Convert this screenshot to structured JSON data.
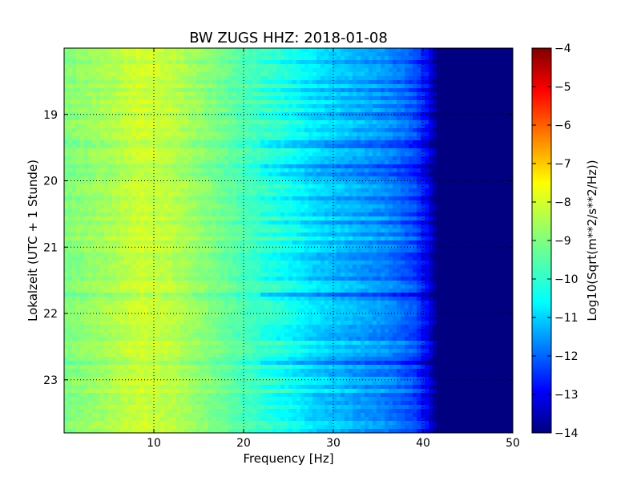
{
  "chart_data": {
    "type": "heatmap",
    "title": "BW ZUGS HHZ: 2018-01-08",
    "xlabel": "Frequency [Hz]",
    "ylabel": "Lokalzeit (UTC + 1 Stunde)",
    "xlim": [
      0,
      50
    ],
    "ylim": [
      18.0,
      23.8
    ],
    "y_inverted": true,
    "x_ticks": [
      10,
      20,
      30,
      40,
      50
    ],
    "y_ticks": [
      19,
      20,
      21,
      22,
      23
    ],
    "grid": true,
    "colormap": "jet",
    "colorbar": {
      "label": "Log10(Sqrt(m**2/s**2/Hz))",
      "range": [
        -14,
        -4
      ],
      "ticks": [
        -4,
        -5,
        -6,
        -7,
        -8,
        -9,
        -10,
        -11,
        -12,
        -13,
        -14
      ]
    },
    "psd_profile": {
      "frequency_hz": [
        0,
        5,
        8.5,
        12,
        15,
        20,
        25,
        28,
        32,
        36,
        39,
        40.5,
        41.5,
        43,
        50
      ],
      "log10_psd": [
        -9.0,
        -8.6,
        -8.2,
        -8.4,
        -8.8,
        -9.5,
        -10.1,
        -10.6,
        -11.0,
        -11.4,
        -12.0,
        -12.8,
        -14.0,
        -14.0,
        -14.0
      ]
    }
  }
}
